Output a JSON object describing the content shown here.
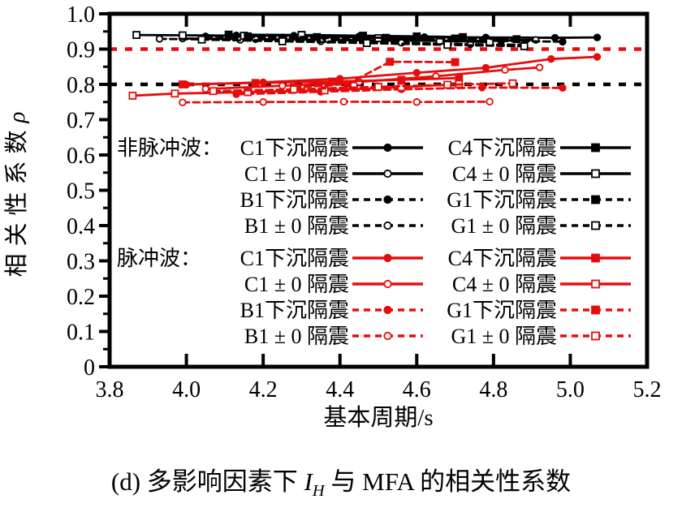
{
  "caption": {
    "prefix": "(d) 多影响因素下 ",
    "var": "I",
    "sub": "H",
    "suffix": " 与 MFA 的相关性系数"
  },
  "chart_data": {
    "type": "line",
    "title": "",
    "xlabel": "基本周期/s",
    "ylabel": {
      "text": "相关性系数",
      "symbol": "ρ"
    },
    "xlim": [
      3.8,
      5.2
    ],
    "ylim": [
      0,
      1.0
    ],
    "grid": false,
    "legend_position": "inside-left",
    "x_ticks": {
      "values": [
        3.8,
        4.0,
        4.2,
        4.4,
        4.6,
        4.8,
        5.0,
        5.2
      ],
      "labels": [
        "3.8",
        "4.0",
        "4.2",
        "4.4",
        "4.6",
        "4.8",
        "5.0",
        "5.2"
      ]
    },
    "y_ticks": {
      "values": [
        0,
        0.1,
        0.2,
        0.3,
        0.4,
        0.5,
        0.6,
        0.7,
        0.8,
        0.9,
        1.0
      ],
      "labels": [
        "0",
        "0.1",
        "0.2",
        "0.3",
        "0.4",
        "0.5",
        "0.6",
        "0.7",
        "0.8",
        "0.9",
        "1.0"
      ],
      "minor_step": 0.05
    },
    "reference_lines": [
      {
        "y": 0.9,
        "color": "#e60d0c",
        "style": "dashed"
      },
      {
        "y": 0.8,
        "color": "#000000",
        "style": "dashed"
      }
    ],
    "groups": [
      {
        "id": "non_pulse",
        "label": "非脉冲波：",
        "color": "#000000",
        "series": [
          {
            "name": "C1下沉隔震",
            "line": "solid",
            "marker": "circle",
            "fill": "filled",
            "points": [
              [
                4.13,
                0.939
              ],
              [
                4.28,
                0.938
              ],
              [
                4.45,
                0.936
              ],
              [
                4.62,
                0.934
              ],
              [
                4.78,
                0.933
              ],
              [
                4.96,
                0.932
              ],
              [
                5.07,
                0.933
              ]
            ]
          },
          {
            "name": "C1 ± 0 隔震",
            "line": "solid",
            "marker": "circle",
            "fill": "open",
            "points": [
              [
                3.99,
                0.93
              ],
              [
                4.18,
                0.928
              ],
              [
                4.37,
                0.926
              ],
              [
                4.56,
                0.924
              ],
              [
                4.74,
                0.923
              ],
              [
                4.91,
                0.926
              ]
            ]
          },
          {
            "name": "B1下沉隔震",
            "line": "dashed",
            "marker": "circle",
            "fill": "filled",
            "points": [
              [
                4.05,
                0.936
              ],
              [
                4.25,
                0.933
              ],
              [
                4.46,
                0.93
              ],
              [
                4.66,
                0.926
              ],
              [
                4.82,
                0.923
              ],
              [
                4.98,
                0.921
              ]
            ]
          },
          {
            "name": "B1 ± 0 隔震",
            "line": "dashed",
            "marker": "circle",
            "fill": "open",
            "points": [
              [
                3.93,
                0.929
              ],
              [
                4.14,
                0.926
              ],
              [
                4.35,
                0.922
              ],
              [
                4.56,
                0.918
              ],
              [
                4.74,
                0.914
              ],
              [
                4.88,
                0.912
              ]
            ]
          },
          {
            "name": "C4下沉隔震",
            "line": "solid",
            "marker": "square",
            "fill": "filled",
            "points": [
              [
                4.11,
                0.941
              ],
              [
                4.3,
                0.94
              ],
              [
                4.46,
                0.938
              ],
              [
                4.6,
                0.936
              ],
              [
                4.72,
                0.934
              ]
            ]
          },
          {
            "name": "C4 ± 0 隔震",
            "line": "solid",
            "marker": "square",
            "fill": "open",
            "points": [
              [
                3.87,
                0.94
              ],
              [
                3.99,
                0.939
              ],
              [
                4.15,
                0.938
              ],
              [
                4.3,
                0.94
              ],
              [
                4.5,
                0.931
              ],
              [
                4.66,
                0.924
              ],
              [
                4.79,
                0.92
              ]
            ]
          },
          {
            "name": "G1下沉隔震",
            "line": "dashed",
            "marker": "square",
            "fill": "filled",
            "points": [
              [
                4.16,
                0.936
              ],
              [
                4.34,
                0.934
              ],
              [
                4.52,
                0.932
              ],
              [
                4.7,
                0.93
              ],
              [
                4.86,
                0.928
              ]
            ]
          },
          {
            "name": "G1 ± 0 隔震",
            "line": "dashed",
            "marker": "square",
            "fill": "open",
            "points": [
              [
                4.04,
                0.927
              ],
              [
                4.25,
                0.922
              ],
              [
                4.47,
                0.917
              ],
              [
                4.68,
                0.912
              ],
              [
                4.88,
                0.908
              ]
            ]
          }
        ]
      },
      {
        "id": "pulse",
        "label": "脉冲波：",
        "color": "#e60d0c",
        "series": [
          {
            "name": "C1下沉隔震",
            "line": "solid",
            "marker": "circle",
            "fill": "filled",
            "points": [
              [
                4.0,
                0.799
              ],
              [
                4.2,
                0.806
              ],
              [
                4.4,
                0.816
              ],
              [
                4.6,
                0.833
              ],
              [
                4.78,
                0.847
              ],
              [
                4.95,
                0.872
              ],
              [
                5.07,
                0.878
              ]
            ]
          },
          {
            "name": "C1 ± 0 隔震",
            "line": "solid",
            "marker": "circle",
            "fill": "open",
            "points": [
              [
                4.05,
                0.787
              ],
              [
                4.25,
                0.796
              ],
              [
                4.45,
                0.807
              ],
              [
                4.65,
                0.823
              ],
              [
                4.83,
                0.841
              ],
              [
                4.92,
                0.848
              ]
            ]
          },
          {
            "name": "B1下沉隔震",
            "line": "dashed",
            "marker": "circle",
            "fill": "filled",
            "points": [
              [
                4.13,
                0.772
              ],
              [
                4.35,
                0.779
              ],
              [
                4.56,
                0.786
              ],
              [
                4.77,
                0.791
              ],
              [
                4.98,
                0.79
              ]
            ]
          },
          {
            "name": "B1 ± 0 隔震",
            "line": "dashed",
            "marker": "circle",
            "fill": "open",
            "points": [
              [
                3.99,
                0.749
              ],
              [
                4.2,
                0.75
              ],
              [
                4.41,
                0.751
              ],
              [
                4.6,
                0.75
              ],
              [
                4.79,
                0.751
              ]
            ]
          },
          {
            "name": "C4下沉隔震",
            "line": "solid",
            "marker": "square",
            "fill": "filled",
            "points": [
              [
                3.99,
                0.8
              ],
              [
                4.18,
                0.804
              ],
              [
                4.38,
                0.808
              ],
              [
                4.56,
                0.813
              ],
              [
                4.71,
                0.818
              ]
            ]
          },
          {
            "name": "C4 ± 0 隔震",
            "line": "solid",
            "marker": "square",
            "fill": "open",
            "points": [
              [
                3.86,
                0.768
              ],
              [
                3.97,
                0.774
              ],
              [
                4.16,
                0.778
              ],
              [
                4.36,
                0.783
              ],
              [
                4.56,
                0.792
              ],
              [
                4.71,
                0.801
              ]
            ]
          },
          {
            "name": "G1下沉隔震",
            "line": "dashed",
            "marker": "square",
            "fill": "filled",
            "points": [
              [
                4.28,
                0.791
              ],
              [
                4.42,
                0.801
              ],
              [
                4.53,
                0.864
              ],
              [
                4.7,
                0.863
              ]
            ]
          },
          {
            "name": "G1 ± 0 隔震",
            "line": "dashed",
            "marker": "square",
            "fill": "open",
            "points": [
              [
                4.07,
                0.781
              ],
              [
                4.28,
                0.786
              ],
              [
                4.5,
                0.793
              ],
              [
                4.68,
                0.799
              ],
              [
                4.85,
                0.803
              ]
            ]
          }
        ]
      }
    ]
  },
  "colors": {
    "black": "#000000",
    "red": "#e60d0c",
    "background": "#ffffff"
  }
}
